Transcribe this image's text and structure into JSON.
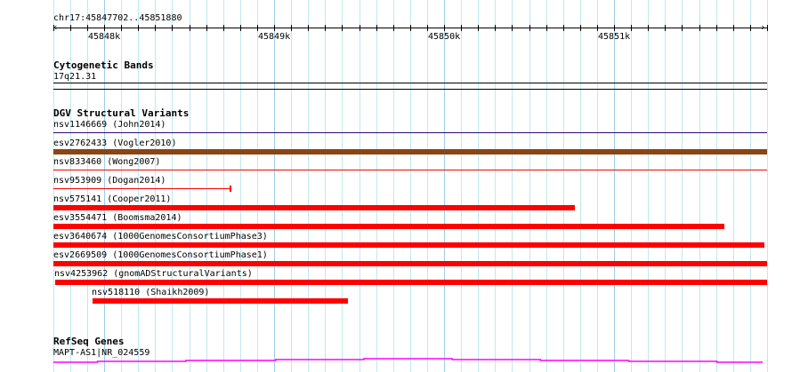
{
  "ruler": {
    "location": "chr17:45847702..45851880",
    "labels": [
      "45848k",
      "45849k",
      "45850k",
      "45851k"
    ]
  },
  "tracks": {
    "cytobands": {
      "title": "Cytogenetic Bands",
      "feature": "17q21.31"
    },
    "dgv": {
      "title": "DGV Structural Variants",
      "features": [
        {
          "label": "nsv1146669 (John2014)",
          "color": "#2a0a6e"
        },
        {
          "label": "esv2762433 (Vogler2010)",
          "color": "#8b4513"
        },
        {
          "label": "nsv833460 (Wong2007)",
          "color": "#ff0000"
        },
        {
          "label": "nsv953909 (Dogan2014)",
          "color": "#ff0000"
        },
        {
          "label": "nsv575141 (Cooper2011)",
          "color": "#ff0000"
        },
        {
          "label": "esv3554471 (Boomsma2014)",
          "color": "#ff0000"
        },
        {
          "label": "esv3640674 (1000GenomesConsortiumPhase3)",
          "color": "#ff0000"
        },
        {
          "label": "esv2669509 (1000GenomesConsortiumPhase1)",
          "color": "#ff0000"
        },
        {
          "label": "nsv4253962 (gnomADStructuralVariants)",
          "color": "#ff0000"
        },
        {
          "label": "nsv518110 (Shaikh2009)",
          "color": "#ff0000"
        }
      ]
    },
    "refseq": {
      "title": "RefSeq Genes",
      "feature": "MAPT-AS1|NR_024559",
      "color": "#ff00ff"
    }
  }
}
